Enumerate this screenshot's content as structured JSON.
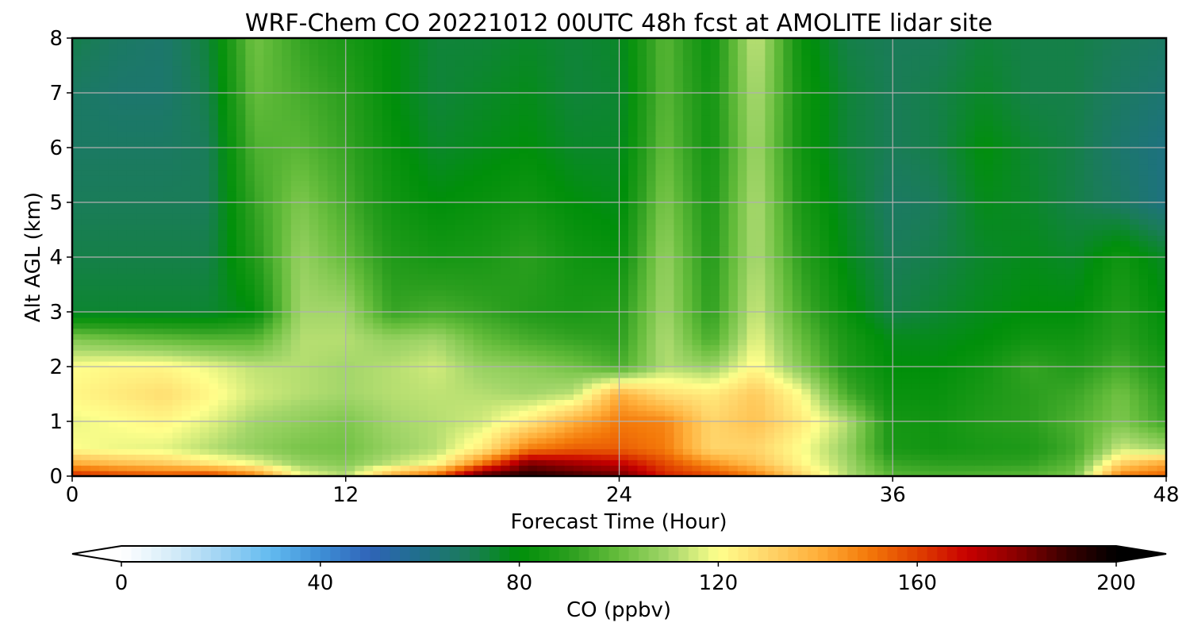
{
  "chart_data": {
    "type": "heatmap",
    "title": "WRF-Chem CO  20221012 00UTC 48h fcst at AMOLITE lidar site",
    "xlabel": "Forecast Time (Hour)",
    "ylabel": "Alt AGL (km)",
    "xlim": [
      0,
      48
    ],
    "ylim": [
      0,
      8
    ],
    "xticks": [
      0,
      12,
      24,
      36,
      48
    ],
    "yticks": [
      0,
      1,
      2,
      3,
      4,
      5,
      6,
      7,
      8
    ],
    "grid": true,
    "colorbar": {
      "label": "CO  (ppbv)",
      "min": 0,
      "max": 200,
      "ticks": [
        0,
        40,
        80,
        120,
        160,
        200
      ],
      "extend": "both",
      "colors": [
        "#ffffff",
        "#d6ecf8",
        "#9fd3f3",
        "#62baf0",
        "#3f8fd6",
        "#2f64b8",
        "#1f6f8a",
        "#1a7c58",
        "#008f0a",
        "#2a9e1e",
        "#66bd3c",
        "#a3d66a",
        "#ffff8c",
        "#ffd56a",
        "#ffaf3a",
        "#f47a0a",
        "#e04000",
        "#c80000",
        "#8a0000",
        "#3a0000",
        "#000000"
      ]
    },
    "x": [
      0,
      2,
      4,
      6,
      8,
      10,
      12,
      14,
      16,
      18,
      20,
      22,
      24,
      26,
      28,
      30,
      32,
      34,
      36,
      38,
      40,
      42,
      44,
      46,
      48
    ],
    "y": [
      0,
      0.25,
      0.5,
      1,
      1.5,
      2,
      2.5,
      3,
      4,
      5,
      6,
      7,
      8
    ],
    "z": [
      [
        165,
        160,
        158,
        162,
        150,
        120,
        112,
        140,
        155,
        190,
        195,
        190,
        185,
        165,
        160,
        150,
        130,
        112,
        98,
        96,
        97,
        98,
        103,
        150,
        155
      ],
      [
        140,
        135,
        132,
        125,
        118,
        108,
        105,
        113,
        120,
        150,
        180,
        175,
        170,
        158,
        145,
        135,
        122,
        110,
        92,
        90,
        90,
        91,
        98,
        130,
        140
      ],
      [
        120,
        118,
        117,
        112,
        107,
        103,
        102,
        108,
        112,
        125,
        150,
        155,
        155,
        150,
        130,
        130,
        120,
        108,
        86,
        84,
        86,
        87,
        94,
        115,
        110
      ],
      [
        118,
        120,
        122,
        117,
        110,
        107,
        104,
        110,
        112,
        115,
        125,
        140,
        150,
        148,
        130,
        135,
        125,
        112,
        85,
        84,
        88,
        90,
        96,
        104,
        93
      ],
      [
        122,
        125,
        128,
        122,
        115,
        112,
        110,
        112,
        113,
        112,
        110,
        113,
        140,
        128,
        125,
        133,
        120,
        95,
        82,
        82,
        86,
        90,
        93,
        102,
        90
      ],
      [
        120,
        122,
        122,
        118,
        113,
        112,
        110,
        112,
        115,
        108,
        106,
        102,
        95,
        112,
        108,
        122,
        105,
        88,
        80,
        80,
        84,
        92,
        88,
        95,
        86
      ],
      [
        105,
        102,
        100,
        98,
        98,
        112,
        112,
        108,
        110,
        100,
        95,
        92,
        90,
        112,
        95,
        118,
        100,
        86,
        78,
        78,
        80,
        84,
        84,
        90,
        82
      ],
      [
        75,
        75,
        75,
        75,
        80,
        110,
        110,
        92,
        95,
        92,
        88,
        86,
        88,
        110,
        90,
        115,
        95,
        82,
        72,
        75,
        78,
        80,
        80,
        88,
        80
      ],
      [
        72,
        72,
        72,
        72,
        88,
        108,
        100,
        88,
        85,
        86,
        90,
        84,
        82,
        108,
        88,
        112,
        90,
        78,
        70,
        72,
        76,
        78,
        76,
        84,
        76
      ],
      [
        70,
        70,
        70,
        70,
        92,
        104,
        95,
        84,
        80,
        82,
        84,
        80,
        78,
        104,
        86,
        112,
        86,
        76,
        68,
        70,
        78,
        76,
        72,
        68,
        62
      ],
      [
        68,
        68,
        68,
        70,
        96,
        98,
        92,
        82,
        76,
        78,
        80,
        76,
        76,
        100,
        84,
        110,
        84,
        74,
        70,
        72,
        80,
        75,
        72,
        66,
        62
      ],
      [
        68,
        66,
        66,
        72,
        100,
        95,
        90,
        80,
        74,
        76,
        78,
        74,
        75,
        98,
        84,
        112,
        84,
        74,
        70,
        72,
        76,
        72,
        72,
        68,
        65
      ],
      [
        72,
        68,
        66,
        74,
        102,
        92,
        86,
        80,
        74,
        74,
        76,
        74,
        76,
        98,
        82,
        115,
        82,
        72,
        70,
        70,
        74,
        72,
        72,
        70,
        68
      ]
    ]
  }
}
